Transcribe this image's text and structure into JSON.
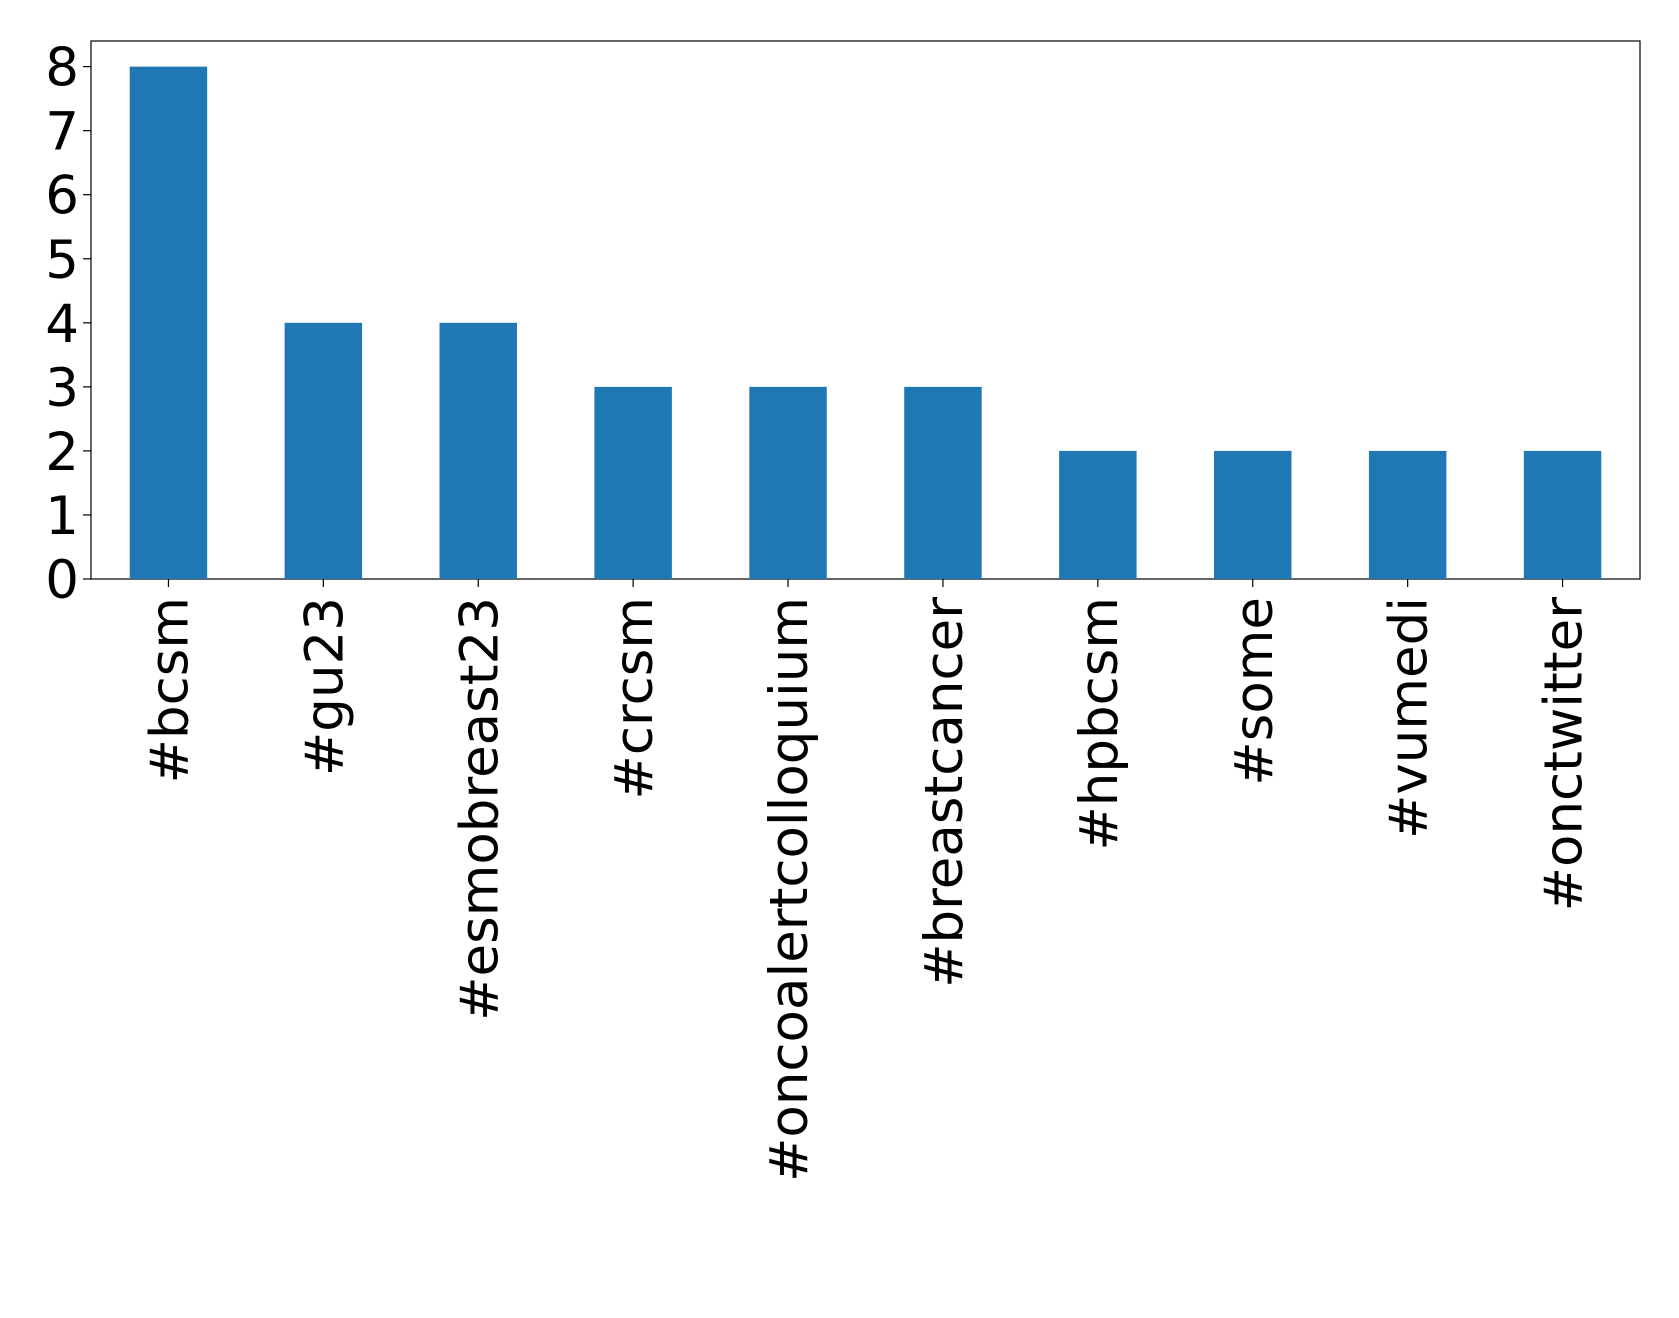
{
  "chart_data": {
    "type": "bar",
    "categories": [
      "#bcsm",
      "#gu23",
      "#esmobreast23",
      "#crcsm",
      "#oncoalertcolloquium",
      "#breastcancer",
      "#hpbcsm",
      "#some",
      "#vumedi",
      "#onctwitter"
    ],
    "values": [
      8,
      4,
      4,
      3,
      3,
      3,
      2,
      2,
      2,
      2
    ],
    "color": "#1f77b4",
    "ylim": [
      0,
      8.4
    ],
    "yticks": [
      0,
      1,
      2,
      3,
      4,
      5,
      6,
      7,
      8
    ],
    "grid": false
  }
}
